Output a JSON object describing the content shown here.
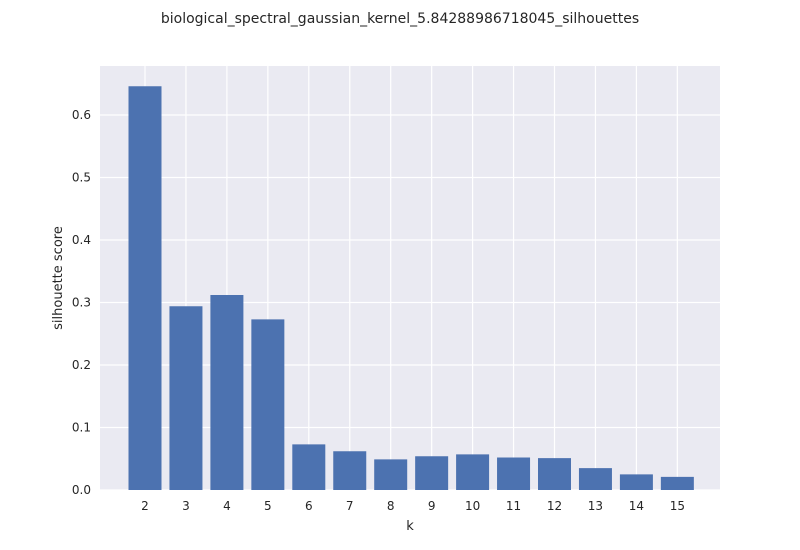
{
  "chart_data": {
    "type": "bar",
    "title": "biological_spectral_gaussian_kernel_5.84288986718045_silhouettes",
    "xlabel": "k",
    "ylabel": "silhouette score",
    "categories": [
      "2",
      "3",
      "4",
      "5",
      "6",
      "7",
      "8",
      "9",
      "10",
      "11",
      "12",
      "13",
      "14",
      "15"
    ],
    "values": [
      0.646,
      0.294,
      0.312,
      0.273,
      0.073,
      0.062,
      0.049,
      0.054,
      0.057,
      0.052,
      0.051,
      0.035,
      0.025,
      0.021
    ],
    "yticks": [
      "0.0",
      "0.1",
      "0.2",
      "0.3",
      "0.4",
      "0.5",
      "0.6"
    ],
    "ylim": [
      0,
      0.68
    ],
    "grid": true,
    "colors": {
      "bar": "#4c72b0",
      "plot_background": "#eaeaf2",
      "grid": "#ffffff",
      "text": "#262626"
    }
  }
}
